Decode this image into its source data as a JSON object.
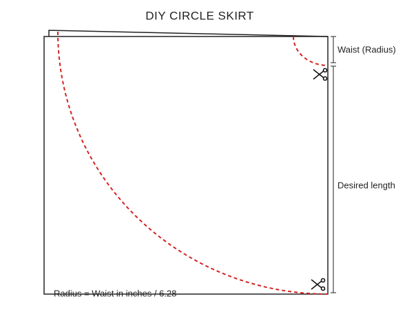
{
  "title": "DIY CIRCLE SKIRT",
  "labels": {
    "waist": "Waist (Radius)",
    "length": "Desired length"
  },
  "formula": "Radius = Waist in inches / 6.28"
}
